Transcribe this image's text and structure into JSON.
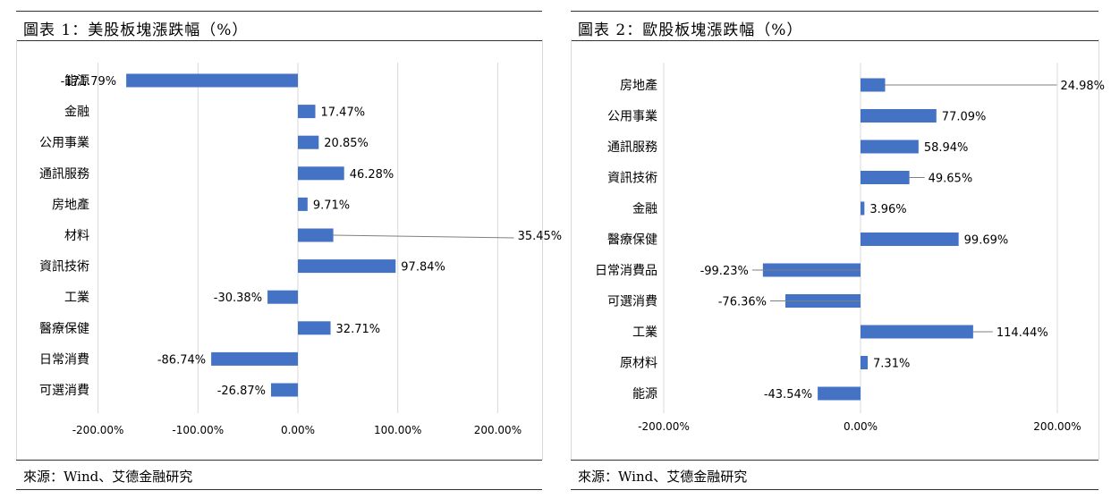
{
  "panels": [
    {
      "title": "圖表 1：美股板塊漲跌幅（%）",
      "source": "來源：Wind、艾德金融研究"
    },
    {
      "title": "圖表 2：歐股板塊漲跌幅（%）",
      "source": "來源：Wind、艾德金融研究"
    }
  ],
  "chart_data": [
    {
      "type": "bar",
      "orientation": "horizontal",
      "title": "圖表 1：美股板塊漲跌幅（%）",
      "categories": [
        "能源",
        "金融",
        "公用事業",
        "通訊服務",
        "房地產",
        "材料",
        "資訊技術",
        "工業",
        "醫療保健",
        "日常消費",
        "可選消費"
      ],
      "values": [
        -171.79,
        17.47,
        20.85,
        46.28,
        9.71,
        35.45,
        97.84,
        -30.38,
        32.71,
        -86.74,
        -26.87
      ],
      "value_labels": [
        "-171.79%",
        "17.47%",
        "20.85%",
        "46.28%",
        "9.71%",
        "35.45%",
        "97.84%",
        "-30.38%",
        "32.71%",
        "-86.74%",
        "-26.87%"
      ],
      "xlim": [
        -200,
        200
      ],
      "xticks": [
        -200,
        -100,
        0,
        100,
        200
      ],
      "xtick_labels": [
        "-200.00%",
        "-100.00%",
        "0.00%",
        "100.00%",
        "200.00%"
      ],
      "grid": "vertical",
      "bar_color": "#4472C4"
    },
    {
      "type": "bar",
      "orientation": "horizontal",
      "title": "圖表 2：歐股板塊漲跌幅（%）",
      "categories": [
        "房地產",
        "公用事業",
        "通訊服務",
        "資訊技術",
        "金融",
        "醫療保健",
        "日常消費品",
        "可選消費",
        "工業",
        "原材料",
        "能源"
      ],
      "values": [
        24.98,
        77.09,
        58.94,
        49.65,
        3.96,
        99.69,
        -99.23,
        -76.36,
        114.44,
        7.31,
        -43.54
      ],
      "value_labels": [
        "24.98%",
        "77.09%",
        "58.94%",
        "49.65%",
        "3.96%",
        "99.69%",
        "-99.23%",
        "-76.36%",
        "114.44%",
        "7.31%",
        "-43.54%"
      ],
      "xlim": [
        -200,
        200
      ],
      "xticks": [
        -200,
        0,
        200
      ],
      "xtick_labels": [
        "-200.00%",
        "0.00%",
        "200.00%"
      ],
      "grid": "vertical",
      "bar_color": "#4472C4"
    }
  ]
}
